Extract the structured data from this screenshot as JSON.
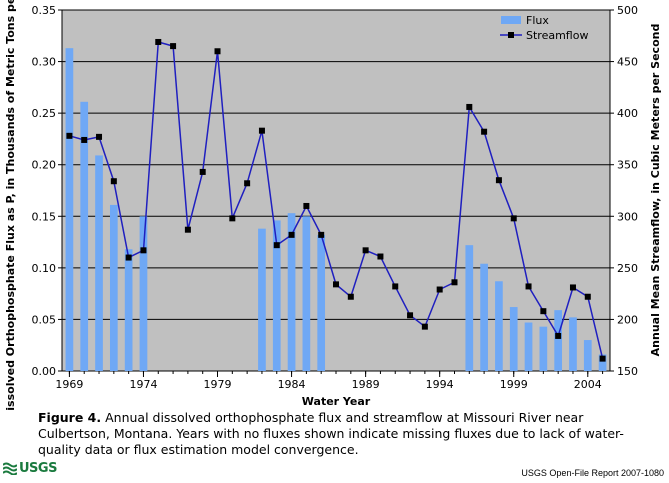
{
  "chart_data": {
    "type": "bar+line",
    "xlabel": "Water Year",
    "ylabel_left": "Dissolved Orthophosphate Flux as P, in Thousands of Metric Tons per Year",
    "ylabel_right": "Annual Mean Streamflow, in Cubic Meters per Second",
    "y_left_lim": [
      0,
      0.35
    ],
    "y_left_ticks": [
      "0.00",
      "0.05",
      "0.10",
      "0.15",
      "0.20",
      "0.25",
      "0.30",
      "0.35"
    ],
    "y_right_lim": [
      150,
      500
    ],
    "y_right_ticks": [
      "150",
      "200",
      "250",
      "300",
      "350",
      "400",
      "450",
      "500"
    ],
    "x_ticks": [
      "1969",
      "1974",
      "1979",
      "1984",
      "1989",
      "1994",
      "1999",
      "2004"
    ],
    "legend_position": "top-right",
    "series": [
      {
        "name": "Flux",
        "type": "bar",
        "axis": "left",
        "color": "#6fa8f5",
        "x": [
          1969,
          1970,
          1971,
          1972,
          1973,
          1974,
          1982,
          1983,
          1984,
          1985,
          1986,
          1996,
          1997,
          1998,
          1999,
          2000,
          2001,
          2002,
          2003,
          2004,
          2005
        ],
        "values": [
          0.313,
          0.261,
          0.209,
          0.161,
          0.118,
          0.15,
          0.138,
          0.146,
          0.153,
          0.15,
          0.132,
          0.122,
          0.104,
          0.087,
          0.062,
          0.047,
          0.043,
          0.059,
          0.052,
          0.03,
          0.016
        ]
      },
      {
        "name": "Streamflow",
        "type": "line",
        "axis": "right",
        "color": "#1f1fc0",
        "marker_color": "#000000",
        "x": [
          1969,
          1970,
          1971,
          1972,
          1973,
          1974,
          1975,
          1976,
          1977,
          1978,
          1979,
          1980,
          1981,
          1982,
          1983,
          1984,
          1985,
          1986,
          1987,
          1988,
          1989,
          1990,
          1991,
          1992,
          1993,
          1994,
          1995,
          1996,
          1997,
          1998,
          1999,
          2000,
          2001,
          2002,
          2003,
          2004,
          2005
        ],
        "values": [
          378,
          374,
          377,
          334,
          260,
          267,
          469,
          465,
          287,
          343,
          460,
          298,
          332,
          383,
          272,
          282,
          310,
          282,
          234,
          222,
          267,
          261,
          232,
          204,
          193,
          229,
          236,
          406,
          382,
          335,
          298,
          232,
          208,
          184,
          231,
          222,
          162
        ]
      }
    ]
  },
  "caption": {
    "label": "Figure 4.",
    "text": " Annual dissolved orthophosphate flux and streamflow at Missouri River near Culbertson, Montana. Years with no fluxes shown indicate missing fluxes due to lack of water-quality data or flux estimation model convergence."
  },
  "logo": {
    "text": "USGS",
    "icon": "usgs-wave-logo"
  },
  "report": "USGS Open-File Report 2007-1080",
  "colors": {
    "plot_background": "#c0c0c0",
    "bar": "#6fa8f5",
    "line": "#1f1fc0"
  }
}
